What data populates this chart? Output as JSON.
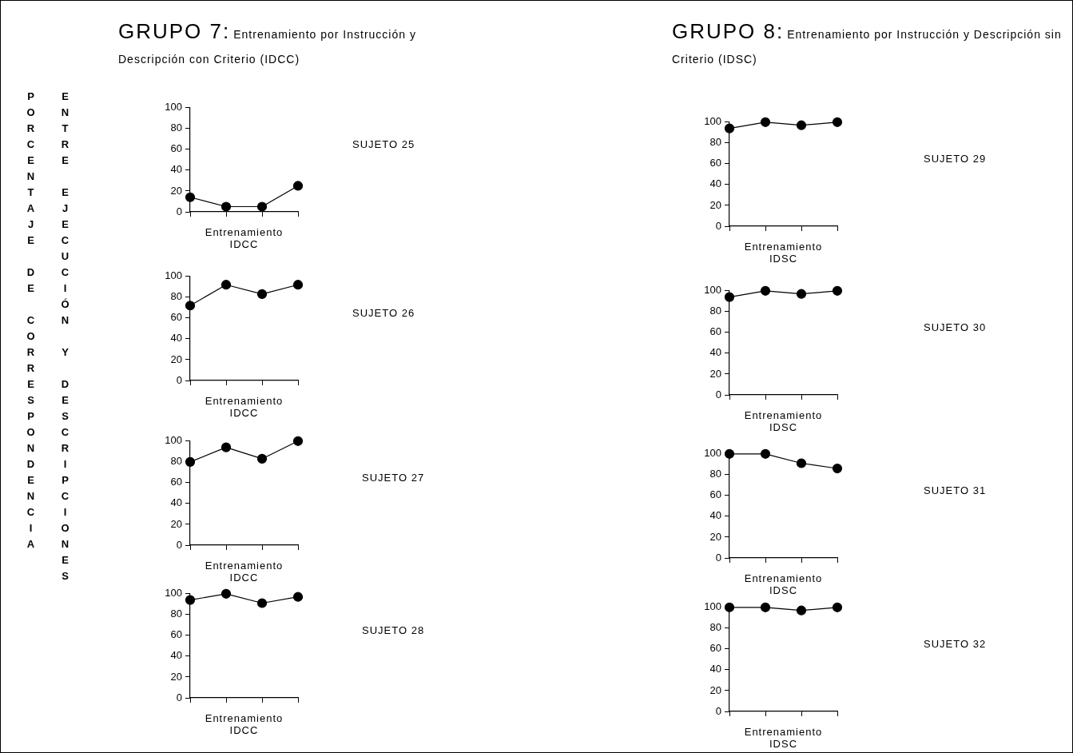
{
  "chart_data": [
    {
      "type": "line",
      "title": "GRUPO 7:",
      "subtitle": "Entrenamiento por Instrucción y Descripción con Criterio (IDCC)",
      "ylabel": "PORCENTAJE DE CORRESPONDENCIA ENTRE EJECUCIÓN Y DESCRIPCIONES",
      "categories": [
        null,
        null,
        null,
        null
      ],
      "values": [
        14,
        5,
        5,
        25
      ],
      "color": "#000000",
      "marker": "circle",
      "ylim": [
        0,
        100
      ],
      "yticks": [
        0,
        20,
        40,
        60,
        80,
        100
      ],
      "tick_labels": "y",
      "xlabel": "Entrenamiento IDCC",
      "annotations": [
        "SUJETO 25"
      ]
    },
    {
      "type": "line",
      "categories": [
        null,
        null,
        null,
        null
      ],
      "values": [
        72,
        92,
        83,
        92
      ],
      "color": "#000000",
      "marker": "circle",
      "ylim": [
        0,
        100
      ],
      "yticks": [
        0,
        20,
        40,
        60,
        80,
        100
      ],
      "tick_labels": "y",
      "xlabel": "Entrenamiento IDCC",
      "annotations": [
        "SUJETO 26"
      ]
    },
    {
      "type": "line",
      "categories": [
        null,
        null,
        null,
        null
      ],
      "values": [
        80,
        94,
        83,
        100
      ],
      "color": "#000000",
      "marker": "circle",
      "ylim": [
        0,
        100
      ],
      "yticks": [
        0,
        20,
        40,
        60,
        80,
        100
      ],
      "tick_labels": "y",
      "xlabel": "Entrenamiento IDCC",
      "annotations": [
        "SUJETO 27"
      ]
    },
    {
      "type": "line",
      "categories": [
        null,
        null,
        null,
        null
      ],
      "values": [
        94,
        100,
        91,
        97
      ],
      "color": "#000000",
      "marker": "circle",
      "ylim": [
        0,
        100
      ],
      "yticks": [
        0,
        20,
        40,
        60,
        80,
        100
      ],
      "tick_labels": "y",
      "xlabel": "Entrenamiento IDCC",
      "annotations": [
        "SUJETO 28"
      ]
    },
    {
      "type": "line",
      "title": "GRUPO 8:",
      "subtitle": "Entrenamiento por Instrucción y Descripción sin Criterio (IDSC)",
      "categories": [
        null,
        null,
        null,
        null
      ],
      "values": [
        94,
        100,
        97,
        100
      ],
      "color": "#000000",
      "marker": "circle",
      "ylim": [
        0,
        100
      ],
      "yticks": [
        0,
        20,
        40,
        60,
        80,
        100
      ],
      "tick_labels": "y",
      "xlabel": "Entrenamiento IDSC",
      "annotations": [
        "SUJETO 29"
      ]
    },
    {
      "type": "line",
      "categories": [
        null,
        null,
        null,
        null
      ],
      "values": [
        94,
        100,
        97,
        100
      ],
      "color": "#000000",
      "marker": "circle",
      "ylim": [
        0,
        100
      ],
      "yticks": [
        0,
        20,
        40,
        60,
        80,
        100
      ],
      "tick_labels": "y",
      "xlabel": "Entrenamiento IDSC",
      "annotations": [
        "SUJETO 30"
      ]
    },
    {
      "type": "line",
      "categories": [
        null,
        null,
        null,
        null
      ],
      "values": [
        100,
        100,
        91,
        86
      ],
      "color": "#000000",
      "marker": "circle",
      "ylim": [
        0,
        100
      ],
      "yticks": [
        0,
        20,
        40,
        60,
        80,
        100
      ],
      "tick_labels": "y",
      "xlabel": "Entrenamiento IDSC",
      "annotations": [
        "SUJETO 31"
      ]
    },
    {
      "type": "line",
      "categories": [
        null,
        null,
        null,
        null
      ],
      "values": [
        100,
        100,
        97,
        100
      ],
      "color": "#000000",
      "marker": "circle",
      "ylim": [
        0,
        100
      ],
      "yticks": [
        0,
        20,
        40,
        60,
        80,
        100
      ],
      "tick_labels": "y",
      "xlabel": "Entrenamiento IDSC",
      "annotations": [
        "SUJETO 32"
      ]
    }
  ]
}
